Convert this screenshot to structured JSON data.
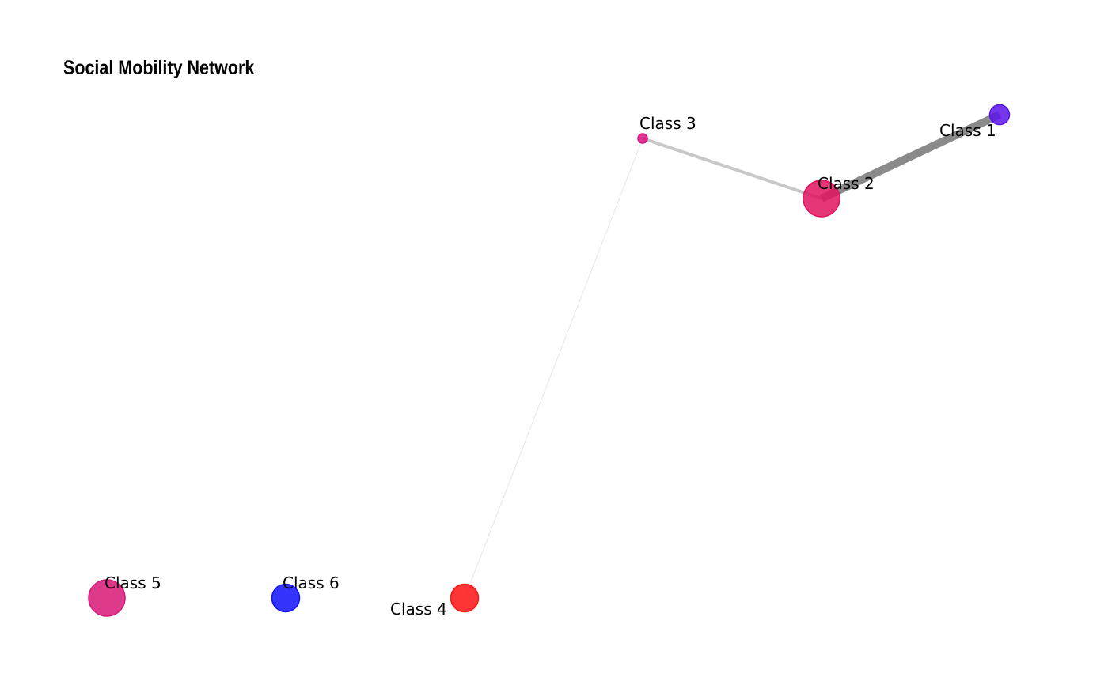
{
  "title": "Social Mobility Network",
  "nodes": [
    {
      "id": "class1",
      "label": "Class 1",
      "color": "#5b13e8",
      "size": 2
    },
    {
      "id": "class2",
      "label": "Class 2",
      "color": "#e0135f",
      "size": 4
    },
    {
      "id": "class3",
      "label": "Class 3",
      "color": "#d4137f",
      "size": 1
    },
    {
      "id": "class4",
      "label": "Class 4",
      "color": "#ff1212",
      "size": 3
    },
    {
      "id": "class5",
      "label": "Class 5",
      "color": "#d81778",
      "size": 4
    },
    {
      "id": "class6",
      "label": "Class 6",
      "color": "#1010ff",
      "size": 3
    }
  ],
  "edges": [
    {
      "from": "class2",
      "to": "class1",
      "weight": 3,
      "color": "#8a8a8a"
    },
    {
      "from": "class3",
      "to": "class2",
      "weight": 2,
      "color": "#c8c8c8"
    },
    {
      "from": "class4",
      "to": "class3",
      "weight": 1,
      "color": "#e6e6e6"
    }
  ]
}
